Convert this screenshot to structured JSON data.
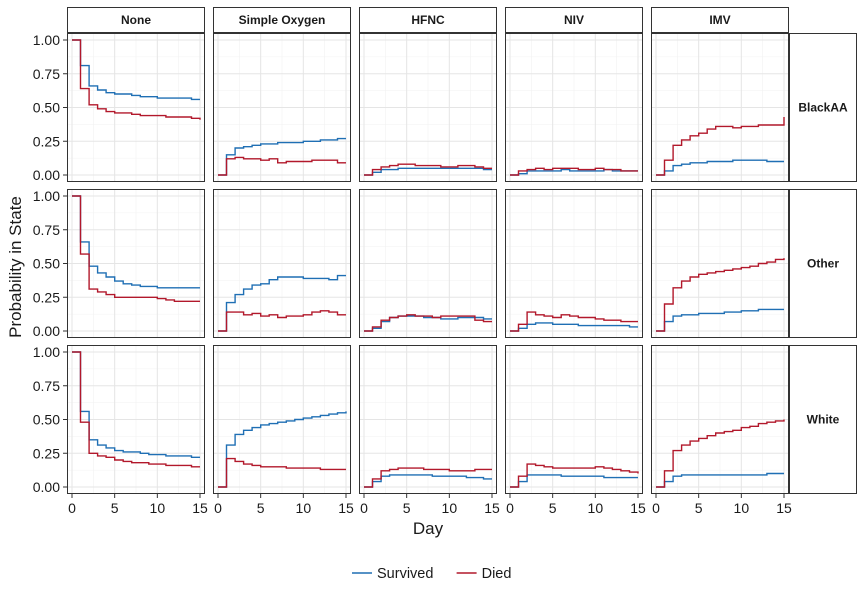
{
  "chart_data": {
    "type": "line",
    "step": true,
    "ylabel": "Probability in State",
    "xlabel": "Day",
    "xlim": [
      0,
      15
    ],
    "ylim": [
      0,
      1
    ],
    "x_ticks": [
      0,
      5,
      10,
      15
    ],
    "y_ticks": [
      "0.00",
      "0.25",
      "0.50",
      "0.75",
      "1.00"
    ],
    "grid": true,
    "legend_position": "bottom",
    "columns": [
      "None",
      "Simple Oxygen",
      "HFNC",
      "NIV",
      "IMV"
    ],
    "rows": [
      "BlackAA",
      "Other",
      "White"
    ],
    "series_styles": [
      {
        "name": "Survived",
        "color": "#1f6fb4"
      },
      {
        "name": "Died",
        "color": "#b2182b"
      }
    ],
    "x": [
      0,
      1,
      2,
      3,
      4,
      5,
      6,
      7,
      8,
      9,
      10,
      11,
      12,
      13,
      14,
      15
    ],
    "panels": [
      {
        "row": "BlackAA",
        "col": "None",
        "survived": [
          1.0,
          0.81,
          0.66,
          0.63,
          0.61,
          0.6,
          0.6,
          0.59,
          0.58,
          0.58,
          0.57,
          0.57,
          0.57,
          0.57,
          0.56,
          0.56
        ],
        "died": [
          1.0,
          0.64,
          0.52,
          0.49,
          0.47,
          0.46,
          0.46,
          0.45,
          0.44,
          0.44,
          0.44,
          0.43,
          0.43,
          0.43,
          0.42,
          0.41
        ]
      },
      {
        "row": "BlackAA",
        "col": "Simple Oxygen",
        "survived": [
          0.0,
          0.15,
          0.2,
          0.21,
          0.22,
          0.23,
          0.23,
          0.24,
          0.24,
          0.24,
          0.25,
          0.25,
          0.26,
          0.26,
          0.27,
          0.27
        ],
        "died": [
          0.0,
          0.12,
          0.13,
          0.12,
          0.12,
          0.11,
          0.12,
          0.09,
          0.1,
          0.1,
          0.1,
          0.11,
          0.11,
          0.11,
          0.09,
          0.09
        ]
      },
      {
        "row": "BlackAA",
        "col": "HFNC",
        "survived": [
          0.0,
          0.02,
          0.04,
          0.04,
          0.05,
          0.05,
          0.05,
          0.05,
          0.05,
          0.05,
          0.05,
          0.05,
          0.05,
          0.05,
          0.04,
          0.04
        ],
        "died": [
          0.0,
          0.04,
          0.06,
          0.07,
          0.08,
          0.08,
          0.07,
          0.07,
          0.07,
          0.06,
          0.06,
          0.07,
          0.07,
          0.06,
          0.05,
          0.05
        ]
      },
      {
        "row": "BlackAA",
        "col": "NIV",
        "survived": [
          0.0,
          0.01,
          0.03,
          0.03,
          0.03,
          0.03,
          0.04,
          0.03,
          0.03,
          0.03,
          0.03,
          0.04,
          0.03,
          0.03,
          0.03,
          0.03
        ],
        "died": [
          0.0,
          0.03,
          0.04,
          0.05,
          0.04,
          0.05,
          0.05,
          0.05,
          0.04,
          0.04,
          0.05,
          0.04,
          0.04,
          0.03,
          0.03,
          0.03
        ]
      },
      {
        "row": "BlackAA",
        "col": "IMV",
        "survived": [
          0.0,
          0.03,
          0.07,
          0.08,
          0.09,
          0.09,
          0.1,
          0.1,
          0.1,
          0.11,
          0.11,
          0.11,
          0.11,
          0.1,
          0.1,
          0.1
        ],
        "died": [
          0.0,
          0.11,
          0.22,
          0.26,
          0.29,
          0.31,
          0.34,
          0.36,
          0.36,
          0.35,
          0.36,
          0.36,
          0.37,
          0.37,
          0.37,
          0.43
        ]
      },
      {
        "row": "Other",
        "col": "None",
        "survived": [
          1.0,
          0.66,
          0.48,
          0.43,
          0.4,
          0.37,
          0.35,
          0.34,
          0.33,
          0.33,
          0.32,
          0.32,
          0.32,
          0.32,
          0.32,
          0.32
        ],
        "died": [
          1.0,
          0.57,
          0.31,
          0.29,
          0.27,
          0.25,
          0.25,
          0.25,
          0.25,
          0.25,
          0.24,
          0.23,
          0.22,
          0.22,
          0.22,
          0.22
        ]
      },
      {
        "row": "Other",
        "col": "Simple Oxygen",
        "survived": [
          0.0,
          0.21,
          0.27,
          0.31,
          0.34,
          0.35,
          0.38,
          0.4,
          0.4,
          0.4,
          0.39,
          0.39,
          0.39,
          0.38,
          0.41,
          0.41
        ],
        "died": [
          0.0,
          0.14,
          0.14,
          0.12,
          0.13,
          0.11,
          0.12,
          0.1,
          0.11,
          0.11,
          0.12,
          0.14,
          0.15,
          0.14,
          0.12,
          0.12
        ]
      },
      {
        "row": "Other",
        "col": "HFNC",
        "survived": [
          0.0,
          0.02,
          0.07,
          0.1,
          0.11,
          0.11,
          0.11,
          0.1,
          0.1,
          0.09,
          0.09,
          0.1,
          0.1,
          0.1,
          0.09,
          0.09
        ],
        "died": [
          0.0,
          0.03,
          0.08,
          0.1,
          0.11,
          0.12,
          0.11,
          0.11,
          0.1,
          0.11,
          0.11,
          0.11,
          0.11,
          0.08,
          0.07,
          0.07
        ]
      },
      {
        "row": "Other",
        "col": "NIV",
        "survived": [
          0.0,
          0.02,
          0.05,
          0.06,
          0.06,
          0.05,
          0.05,
          0.05,
          0.04,
          0.04,
          0.04,
          0.04,
          0.04,
          0.04,
          0.03,
          0.03
        ],
        "died": [
          0.0,
          0.05,
          0.14,
          0.12,
          0.11,
          0.1,
          0.12,
          0.11,
          0.1,
          0.1,
          0.09,
          0.08,
          0.08,
          0.07,
          0.07,
          0.07
        ]
      },
      {
        "row": "Other",
        "col": "IMV",
        "survived": [
          0.0,
          0.07,
          0.11,
          0.12,
          0.12,
          0.13,
          0.13,
          0.13,
          0.14,
          0.14,
          0.15,
          0.15,
          0.16,
          0.16,
          0.16,
          0.16
        ],
        "died": [
          0.0,
          0.2,
          0.32,
          0.37,
          0.4,
          0.42,
          0.43,
          0.44,
          0.45,
          0.46,
          0.47,
          0.48,
          0.5,
          0.51,
          0.53,
          0.54
        ]
      },
      {
        "row": "White",
        "col": "None",
        "survived": [
          1.0,
          0.56,
          0.35,
          0.31,
          0.29,
          0.27,
          0.26,
          0.26,
          0.25,
          0.24,
          0.24,
          0.23,
          0.23,
          0.23,
          0.22,
          0.22
        ],
        "died": [
          1.0,
          0.48,
          0.25,
          0.23,
          0.22,
          0.2,
          0.19,
          0.18,
          0.18,
          0.17,
          0.17,
          0.16,
          0.16,
          0.16,
          0.15,
          0.15
        ]
      },
      {
        "row": "White",
        "col": "Simple Oxygen",
        "survived": [
          0.0,
          0.31,
          0.39,
          0.42,
          0.44,
          0.46,
          0.47,
          0.48,
          0.49,
          0.5,
          0.51,
          0.52,
          0.53,
          0.54,
          0.55,
          0.56
        ],
        "died": [
          0.0,
          0.21,
          0.19,
          0.17,
          0.16,
          0.15,
          0.15,
          0.15,
          0.14,
          0.14,
          0.14,
          0.14,
          0.13,
          0.13,
          0.13,
          0.13
        ]
      },
      {
        "row": "White",
        "col": "HFNC",
        "survived": [
          0.0,
          0.04,
          0.08,
          0.09,
          0.09,
          0.09,
          0.09,
          0.09,
          0.08,
          0.08,
          0.08,
          0.08,
          0.07,
          0.07,
          0.06,
          0.06
        ],
        "died": [
          0.0,
          0.06,
          0.12,
          0.13,
          0.14,
          0.14,
          0.14,
          0.13,
          0.13,
          0.13,
          0.12,
          0.12,
          0.12,
          0.13,
          0.13,
          0.13
        ]
      },
      {
        "row": "White",
        "col": "NIV",
        "survived": [
          0.0,
          0.04,
          0.09,
          0.09,
          0.09,
          0.09,
          0.08,
          0.08,
          0.08,
          0.08,
          0.08,
          0.07,
          0.07,
          0.07,
          0.07,
          0.07
        ],
        "died": [
          0.0,
          0.08,
          0.17,
          0.16,
          0.15,
          0.14,
          0.14,
          0.14,
          0.14,
          0.14,
          0.15,
          0.14,
          0.13,
          0.12,
          0.11,
          0.1
        ]
      },
      {
        "row": "White",
        "col": "IMV",
        "survived": [
          0.0,
          0.04,
          0.08,
          0.09,
          0.09,
          0.09,
          0.09,
          0.09,
          0.09,
          0.09,
          0.09,
          0.09,
          0.09,
          0.1,
          0.1,
          0.1
        ],
        "died": [
          0.0,
          0.12,
          0.27,
          0.31,
          0.34,
          0.36,
          0.38,
          0.4,
          0.41,
          0.42,
          0.44,
          0.45,
          0.47,
          0.48,
          0.49,
          0.5
        ]
      }
    ]
  }
}
